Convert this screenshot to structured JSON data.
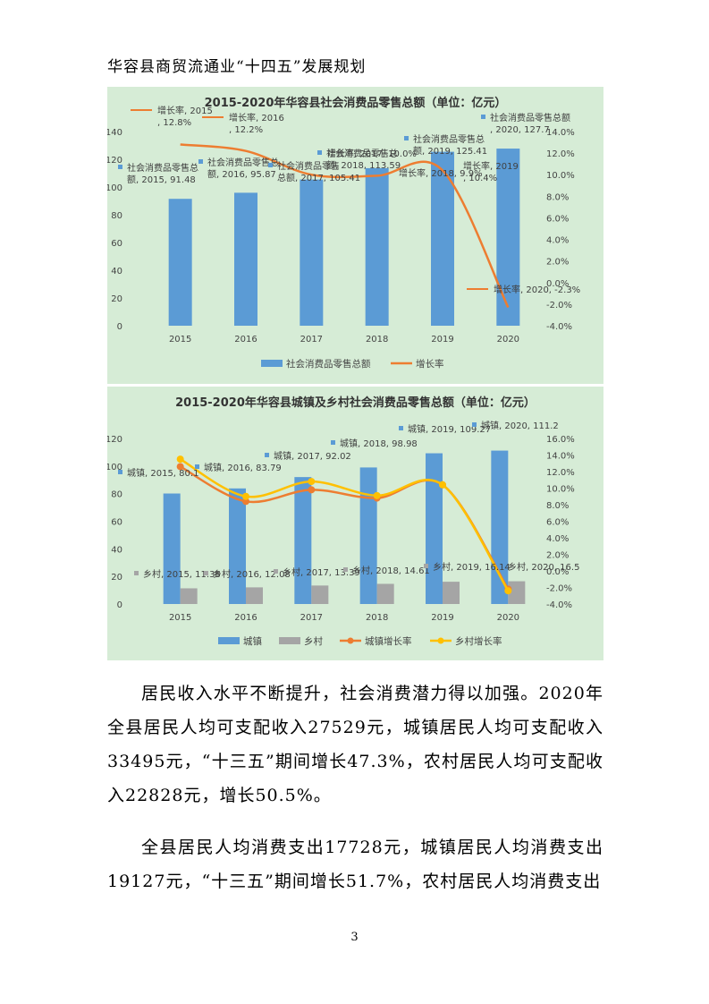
{
  "header": {
    "title": "华容县商贸流通业“十四五”发展规划"
  },
  "chart_data": [
    {
      "type": "bar",
      "title": "2015-2020年华容县社会消费品零售总额（单位：亿元）",
      "categories": [
        "2015",
        "2016",
        "2017",
        "2018",
        "2019",
        "2020"
      ],
      "series": [
        {
          "name": "社会消费品零售总额",
          "kind": "bar",
          "axis": "left",
          "color": "#5b9bd5",
          "values": [
            91.48,
            95.87,
            105.41,
            113.59,
            125.41,
            127.7
          ]
        },
        {
          "name": "增长率",
          "kind": "line",
          "axis": "right",
          "color": "#ed7d31",
          "values": [
            12.8,
            12.2,
            10.0,
            9.9,
            10.4,
            -2.3
          ]
        }
      ],
      "data_labels": [
        "社会消费品零售总额, 2015, 91.48",
        "社会消费品零售总额, 2016, 95.87",
        "社会消费品零售总额, 2017, 105.41",
        "社会消费品零售总额, 2018, 113.59",
        "社会消费品零售总额, 2019, 125.41",
        "社会消费品零售总额, 2020, 127.7",
        "增长率, 2015, 12.8%",
        "增长率, 2016, 12.2%",
        "增长率, 2017, 10.0%",
        "增长率, 2018, 9.9%",
        "增长率, 2019, 10.4%",
        "增长率, 2020, -2.3%"
      ],
      "ylim": [
        0,
        140
      ],
      "y_ticks": [
        "0",
        "20",
        "40",
        "60",
        "80",
        "100",
        "120",
        "140"
      ],
      "y2lim": [
        -4,
        14
      ],
      "y2_ticks": [
        "-4.0%",
        "-2.0%",
        "0.0%",
        "2.0%",
        "4.0%",
        "6.0%",
        "8.0%",
        "10.0%",
        "12.0%",
        "14.0%"
      ],
      "legend": [
        "社会消费品零售总额",
        "增长率"
      ],
      "legend_position": "bottom",
      "grid": false
    },
    {
      "type": "bar",
      "title": "2015-2020年华容县城镇及乡村社会消费品零售总额（单位：亿元）",
      "categories": [
        "2015",
        "2016",
        "2017",
        "2018",
        "2019",
        "2020"
      ],
      "series": [
        {
          "name": "城镇",
          "kind": "bar",
          "axis": "left",
          "color": "#5b9bd5",
          "values": [
            80.1,
            83.79,
            92.02,
            98.98,
            109.27,
            111.2
          ]
        },
        {
          "name": "乡村",
          "kind": "bar",
          "axis": "left",
          "color": "#a5a5a5",
          "values": [
            11.38,
            12.08,
            13.39,
            14.61,
            16.14,
            16.5
          ]
        },
        {
          "name": "城镇增长率",
          "kind": "line",
          "axis": "right",
          "color": "#ed7d31",
          "values": [
            12.6,
            8.4,
            9.8,
            8.8,
            10.4,
            -2.2
          ]
        },
        {
          "name": "乡村增长率",
          "kind": "line",
          "axis": "right",
          "color": "#ffc000",
          "values": [
            13.5,
            9.0,
            10.8,
            9.1,
            10.4,
            -2.4
          ]
        }
      ],
      "data_labels": [
        "城镇, 2015, 80.1",
        "城镇, 2016, 83.79",
        "城镇, 2017, 92.02",
        "城镇, 2018, 98.98",
        "城镇, 2019, 109.27",
        "城镇, 2020, 111.2",
        "乡村, 2015, 11.38",
        "乡村, 2016, 12.08",
        "乡村, 2017, 13.39",
        "乡村, 2018, 14.61",
        "乡村, 2019, 16.14",
        "乡村, 2020, 16.5"
      ],
      "ylim": [
        0,
        120
      ],
      "y_ticks": [
        "0",
        "20",
        "40",
        "60",
        "80",
        "100",
        "120"
      ],
      "y2lim": [
        -4,
        16
      ],
      "y2_ticks": [
        "-4.0%",
        "-2.0%",
        "0.0%",
        "2.0%",
        "4.0%",
        "6.0%",
        "8.0%",
        "10.0%",
        "12.0%",
        "14.0%",
        "16.0%"
      ],
      "legend": [
        "城镇",
        "乡村",
        "城镇增长率",
        "乡村增长率"
      ],
      "legend_position": "bottom",
      "grid": false
    }
  ],
  "paragraphs": [
    "居民收入水平不断提升，社会消费潜力得以加强。2020年全县居民人均可支配收入27529元，城镇居民人均可支配收入33495元，“十三五”期间增长47.3%，农村居民人均可支配收入22828元，增长50.5%。",
    "全县居民人均消费支出17728元，城镇居民人均消费支出19127元，“十三五”期间增长51.7%，农村居民人均消费支出"
  ],
  "page_number": "3"
}
